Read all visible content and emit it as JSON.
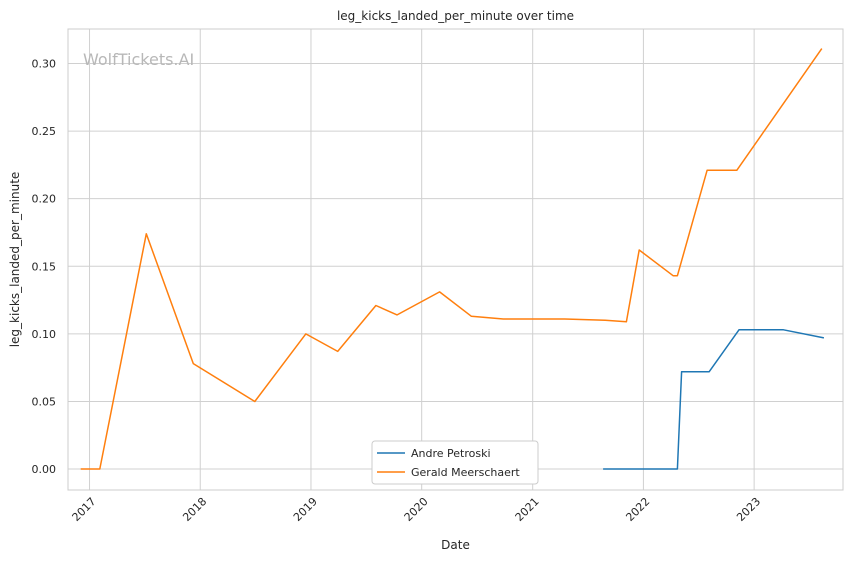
{
  "chart_data": {
    "type": "line",
    "title": "leg_kicks_landed_per_minute over time",
    "xlabel": "Date",
    "ylabel": "leg_kicks_landed_per_minute",
    "watermark": "WolfTickets.AI",
    "x_ticks": [
      "2017",
      "2018",
      "2019",
      "2020",
      "2021",
      "2022",
      "2023"
    ],
    "y_ticks": [
      "0.00",
      "0.05",
      "0.10",
      "0.15",
      "0.20",
      "0.25",
      "0.30"
    ],
    "xlim": [
      "2016-10-22",
      "2023-10-21"
    ],
    "ylim": [
      -0.0155,
      0.3255
    ],
    "grid": true,
    "legend_position": "lower center",
    "series": [
      {
        "name": "Andre Petroski",
        "color": "#1f77b4",
        "points": [
          {
            "x": "2021-08-21",
            "y": 0.0
          },
          {
            "x": "2022-04-23",
            "y": 0.0
          },
          {
            "x": "2022-05-07",
            "y": 0.072
          },
          {
            "x": "2022-08-06",
            "y": 0.072
          },
          {
            "x": "2022-11-12",
            "y": 0.103
          },
          {
            "x": "2023-04-08",
            "y": 0.103
          },
          {
            "x": "2023-08-19",
            "y": 0.097
          }
        ]
      },
      {
        "name": "Gerald Meerschaert",
        "color": "#ff7f0e",
        "points": [
          {
            "x": "2016-12-03",
            "y": 0.0
          },
          {
            "x": "2017-02-04",
            "y": 0.0
          },
          {
            "x": "2017-07-07",
            "y": 0.174
          },
          {
            "x": "2017-12-09",
            "y": 0.078
          },
          {
            "x": "2018-06-30",
            "y": 0.05
          },
          {
            "x": "2018-12-15",
            "y": 0.1
          },
          {
            "x": "2019-03-30",
            "y": 0.087
          },
          {
            "x": "2019-08-03",
            "y": 0.121
          },
          {
            "x": "2019-10-12",
            "y": 0.114
          },
          {
            "x": "2020-02-29",
            "y": 0.131
          },
          {
            "x": "2020-06-13",
            "y": 0.113
          },
          {
            "x": "2020-09-26",
            "y": 0.111
          },
          {
            "x": "2021-04-17",
            "y": 0.111
          },
          {
            "x": "2021-08-28",
            "y": 0.11
          },
          {
            "x": "2021-11-06",
            "y": 0.109
          },
          {
            "x": "2021-12-18",
            "y": 0.162
          },
          {
            "x": "2022-04-09",
            "y": 0.143
          },
          {
            "x": "2022-04-23",
            "y": 0.143
          },
          {
            "x": "2022-07-30",
            "y": 0.221
          },
          {
            "x": "2022-11-05",
            "y": 0.221
          },
          {
            "x": "2023-08-12",
            "y": 0.311
          }
        ]
      }
    ]
  }
}
